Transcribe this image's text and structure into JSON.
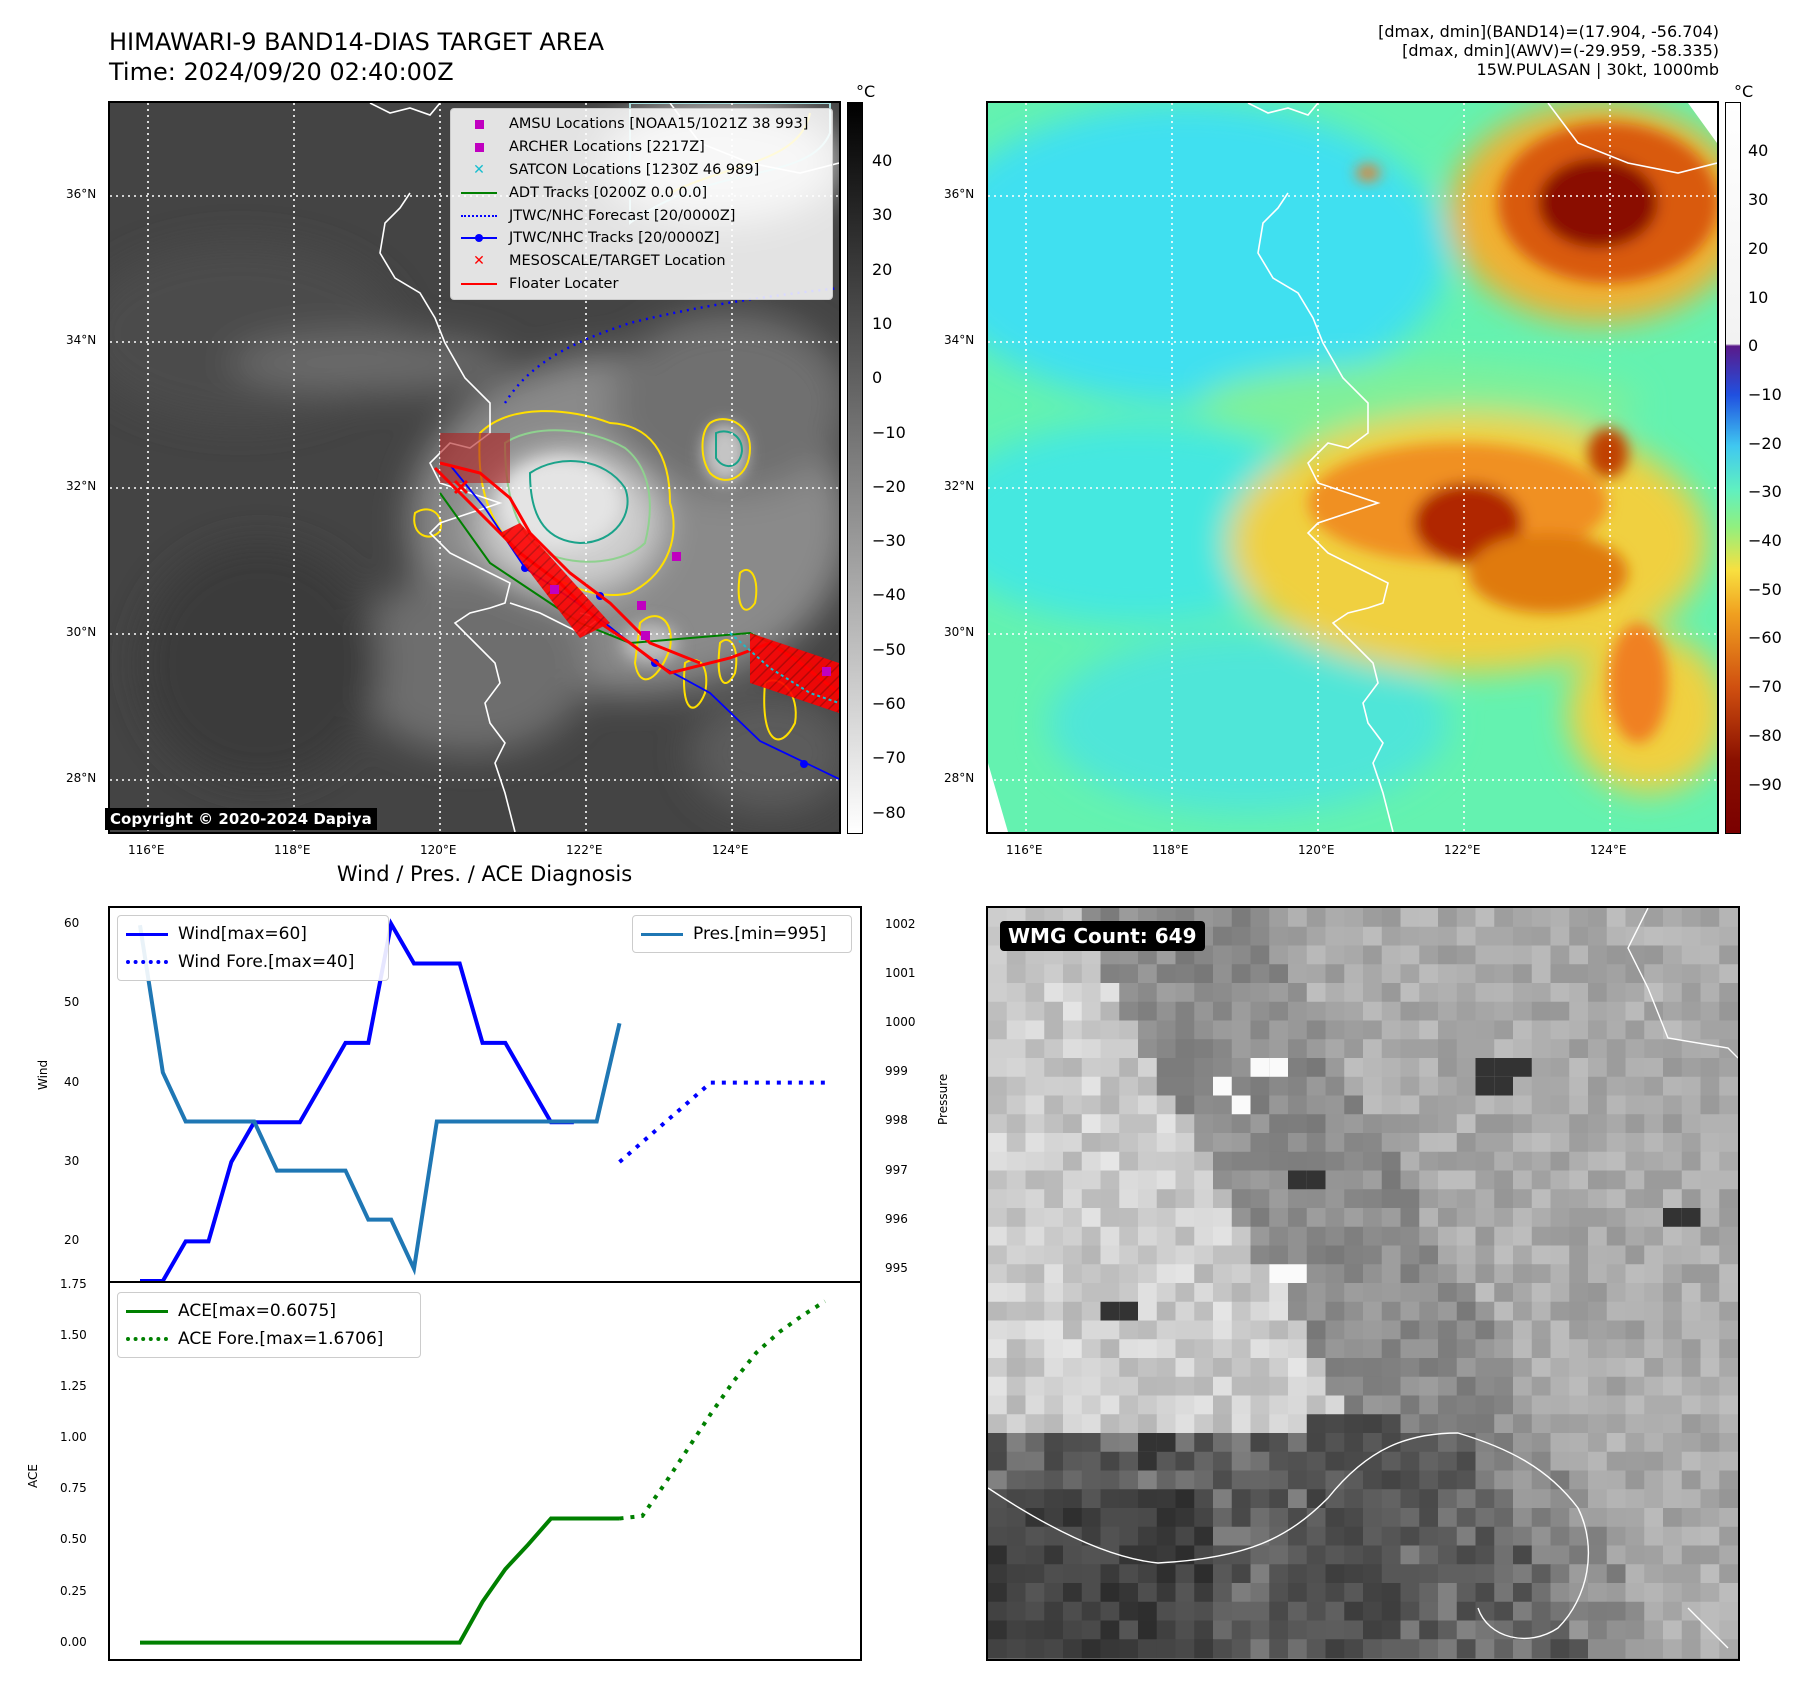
{
  "header": {
    "title_line1": "HIMAWARI-9 BAND14-DIAS TARGET AREA",
    "title_line2": "Time: 2024/09/20 02:40:00Z",
    "info_line1": "[dmax, dmin](BAND14)=(17.904, -56.704)",
    "info_line2": "[dmax, dmin](AWV)=(-29.959, -58.335)",
    "info_line3": "15W.PULASAN | 30kt, 1000mb"
  },
  "map": {
    "lat_labels": [
      "36°N",
      "34°N",
      "32°N",
      "30°N",
      "28°N"
    ],
    "lon_labels": [
      "116°E",
      "118°E",
      "120°E",
      "122°E",
      "124°E"
    ],
    "copyright": "Copyright © 2020-2024 Dapiya",
    "unit": "°C",
    "ir_colorbar_ticks": [
      "40",
      "30",
      "20",
      "10",
      "0",
      "−10",
      "−20",
      "−30",
      "−40",
      "−50",
      "−60",
      "−70",
      "−80"
    ],
    "wv_colorbar_ticks": [
      "40",
      "30",
      "20",
      "10",
      "0",
      "−10",
      "−20",
      "−30",
      "−40",
      "−50",
      "−60",
      "−70",
      "−80",
      "−90"
    ],
    "legend": [
      {
        "label": "AMSU Locations [NOAA15/1021Z 38 993]",
        "icon": "square-marker",
        "color": "#c000c0"
      },
      {
        "label": "ARCHER Locations [2217Z]",
        "icon": "square-marker",
        "color": "#c000c0"
      },
      {
        "label": "SATCON Locations [1230Z 46 989]",
        "icon": "x-marker",
        "color": "#17becf"
      },
      {
        "label": "ADT Tracks [0200Z 0.0 0.0]",
        "icon": "line",
        "color": "#008000"
      },
      {
        "label": "JTWC/NHC Forecast [20/0000Z]",
        "icon": "dotted-line",
        "color": "#0000ff"
      },
      {
        "label": "JTWC/NHC Tracks [20/0000Z]",
        "icon": "line-dot",
        "color": "#0000ff"
      },
      {
        "label": "MESOSCALE/TARGET Location",
        "icon": "x-marker",
        "color": "#ff0000"
      },
      {
        "label": "Floater Locater",
        "icon": "line",
        "color": "#ff0000"
      }
    ]
  },
  "diagnosis": {
    "title": "Wind / Pres. / ACE Diagnosis",
    "wind_ylabel": "Wind",
    "pres_ylabel": "Pressure",
    "ace_ylabel": "ACE",
    "wind_ticks": [
      "60",
      "50",
      "40",
      "30",
      "20"
    ],
    "pres_ticks": [
      "1002",
      "1001",
      "1000",
      "999",
      "998",
      "997",
      "996",
      "995"
    ],
    "ace_ticks": [
      "1.75",
      "1.50",
      "1.25",
      "1.00",
      "0.75",
      "0.50",
      "0.25",
      "0.00"
    ],
    "legend_wind": "Wind[max=60]",
    "legend_wind_fore": "Wind Fore.[max=40]",
    "legend_pres": "Pres.[min=995]",
    "legend_ace": "ACE[max=0.6075]",
    "legend_ace_fore": "ACE Fore.[max=1.6706]",
    "colors": {
      "wind": "#0000ff",
      "pres": "#1f77b4",
      "ace": "#008000"
    }
  },
  "wmg": {
    "label": "WMG Count: 649"
  },
  "chart_data": [
    {
      "type": "line",
      "title": "Wind / Pres. / ACE Diagnosis",
      "ylabel": "Wind",
      "ylim": [
        15,
        62
      ],
      "series": [
        {
          "name": "Wind[max=60]",
          "style": "solid",
          "x": [
            0,
            1,
            2,
            3,
            4,
            5,
            6,
            7,
            8,
            9,
            10,
            11,
            12,
            13,
            14,
            15,
            16,
            17,
            18,
            19
          ],
          "values": [
            15,
            15,
            20,
            20,
            30,
            35,
            35,
            35,
            40,
            45,
            45,
            60,
            55,
            55,
            55,
            45,
            45,
            40,
            35,
            35
          ]
        },
        {
          "name": "Wind Fore.[max=40]",
          "style": "dotted",
          "x": [
            21,
            22,
            23,
            24,
            25,
            26,
            27,
            28,
            29,
            30
          ],
          "values": [
            30,
            32.5,
            35,
            37.5,
            40,
            40,
            40,
            40,
            40,
            40
          ]
        }
      ]
    },
    {
      "type": "line",
      "ylabel": "Pressure",
      "ylim": [
        994.75,
        1002.35
      ],
      "series": [
        {
          "name": "Pres.[min=995]",
          "x": [
            0,
            1,
            2,
            3,
            4,
            5,
            6,
            7,
            8,
            9,
            10,
            11,
            12,
            13,
            14,
            15,
            16,
            17,
            18,
            19,
            20,
            21
          ],
          "values": [
            1002,
            999,
            998,
            998,
            998,
            998,
            997,
            997,
            997,
            997,
            996,
            996,
            995,
            998,
            998,
            998,
            998,
            998,
            998,
            998,
            998,
            1000
          ]
        }
      ]
    },
    {
      "type": "line",
      "ylabel": "ACE",
      "ylim": [
        -0.08,
        1.76
      ],
      "series": [
        {
          "name": "ACE[max=0.6075]",
          "style": "solid",
          "x": [
            0,
            14,
            15,
            16,
            17,
            18,
            19,
            20,
            21
          ],
          "values": [
            0,
            0,
            0.2,
            0.36,
            0.48,
            0.6075,
            0.6075,
            0.6075,
            0.6075
          ]
        },
        {
          "name": "ACE Fore.[max=1.6706]",
          "style": "dotted",
          "x": [
            21,
            22,
            23,
            24,
            25,
            26,
            27,
            28,
            29,
            30
          ],
          "values": [
            0.6075,
            0.62,
            0.78,
            0.95,
            1.12,
            1.28,
            1.42,
            1.52,
            1.6,
            1.6706
          ]
        }
      ]
    }
  ]
}
